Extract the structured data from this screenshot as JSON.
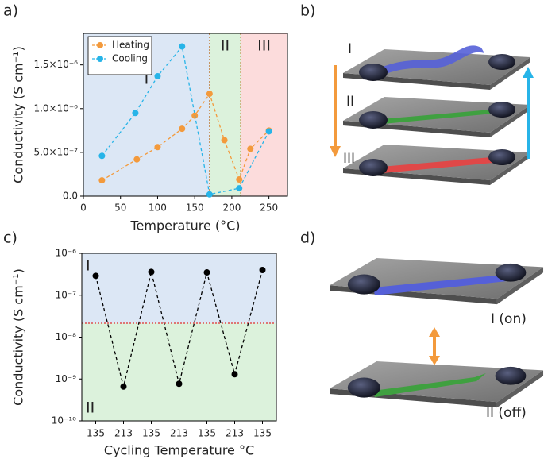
{
  "panel_labels": [
    "a)",
    "b)",
    "c)",
    "d)"
  ],
  "chart_data": [
    {
      "type": "line",
      "x_label": "Temperature (°C)",
      "y_label": "Conductivity (S cm⁻¹)",
      "xlim": [
        0,
        275
      ],
      "xticks": [
        0,
        50,
        100,
        150,
        200,
        250
      ],
      "ylim": [
        0,
        1.86e-06
      ],
      "yticks": [
        {
          "value": 0,
          "label": "0.0"
        },
        {
          "value": 5e-07,
          "label": "5.0×10⁻⁷"
        },
        {
          "value": 1e-06,
          "label": "1.0×10⁻⁶"
        },
        {
          "value": 1.5e-06,
          "label": "1.5×10⁻⁶"
        }
      ],
      "legend": "upper left",
      "boundary_color": "#c0803a",
      "regions": [
        {
          "label": "I",
          "axis": "x",
          "from": 0,
          "to": 170,
          "color": "#dce7f5",
          "label_color": "#2f5597"
        },
        {
          "label": "II",
          "axis": "x",
          "from": 170,
          "to": 212,
          "color": "#dcf2dc",
          "label_color": "#2ca84a"
        },
        {
          "label": "III",
          "axis": "x",
          "from": 212,
          "to": 275,
          "color": "#fcdcdc",
          "label_color": "#d42020"
        }
      ],
      "series": [
        {
          "name": "Heating",
          "color": "#f39a3c",
          "x": [
            25,
            72,
            100,
            133,
            150,
            170,
            190,
            210,
            225,
            250
          ],
          "values": [
            1.8e-07,
            4.2e-07,
            5.6e-07,
            7.7e-07,
            9.2e-07,
            1.17e-06,
            6.4e-07,
            1.9e-07,
            5.4e-07,
            7.5e-07
          ]
        },
        {
          "name": "Cooling",
          "color": "#27b4e8",
          "x": [
            25,
            70,
            100,
            133,
            170,
            210,
            250
          ],
          "values": [
            4.6e-07,
            9.5e-07,
            1.37e-06,
            1.71e-06,
            2e-08,
            9e-08,
            7.4e-07
          ]
        }
      ]
    },
    {
      "type": "line",
      "x_label": "Cycling Temperature °C",
      "y_label": "Conductivity (S cm⁻¹)",
      "categories": [
        "135",
        "213",
        "135",
        "213",
        "135",
        "213",
        "135"
      ],
      "values": [
        2.9e-07,
        6.6e-10,
        3.6e-07,
        7.7e-10,
        3.5e-07,
        1.3e-09,
        4e-07
      ],
      "color": "#000000",
      "log_y": true,
      "ylim": [
        1e-10,
        1e-06
      ],
      "yticks": [
        {
          "value": 1e-10,
          "label": "10⁻¹⁰"
        },
        {
          "value": 1e-09,
          "label": "10⁻⁹"
        },
        {
          "value": 1e-08,
          "label": "10⁻⁸"
        },
        {
          "value": 1e-07,
          "label": "10⁻⁷"
        },
        {
          "value": 1e-06,
          "label": "10⁻⁶"
        }
      ],
      "boundary_color": "#e03030",
      "regions": [
        {
          "label": "I",
          "axis": "y",
          "from": 2.15e-08,
          "to": 1e-06,
          "color": "#dce7f5",
          "label_color": "#2f5597"
        },
        {
          "label": "II",
          "axis": "y",
          "from": 1e-10,
          "to": 2.15e-08,
          "color": "#dcf2dc",
          "label_color": "#2ca84a"
        }
      ]
    }
  ],
  "illustration_b": {
    "labels": [
      "I",
      "II",
      "III"
    ]
  },
  "illustration_d": {
    "labels": [
      "I (on)",
      "II (off)"
    ]
  }
}
